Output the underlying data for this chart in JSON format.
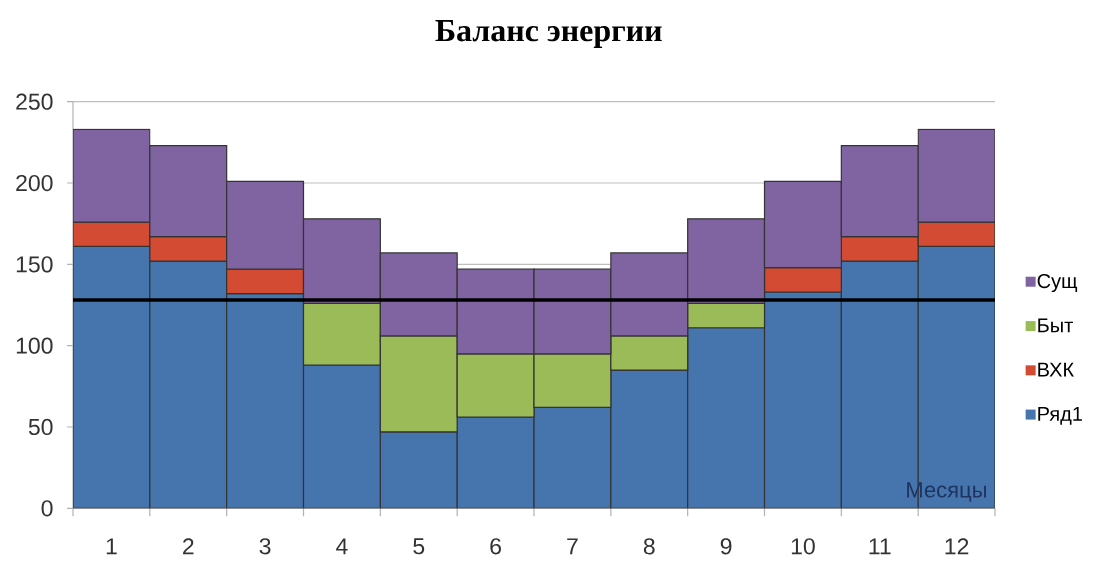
{
  "chart_data": {
    "type": "bar",
    "title": "Баланс энергии",
    "xlabel": "Месяцы",
    "categories": [
      "1",
      "2",
      "3",
      "4",
      "5",
      "6",
      "7",
      "8",
      "9",
      "10",
      "11",
      "12"
    ],
    "stacked": true,
    "series": [
      {
        "name": "Ряд1",
        "color": "#4674ad",
        "values": [
          161,
          152,
          132,
          88,
          47,
          56,
          62,
          85,
          111,
          133,
          152,
          161
        ]
      },
      {
        "name": "ВХК",
        "color": "#d24b32",
        "values": [
          15,
          15,
          15,
          null,
          null,
          null,
          null,
          null,
          null,
          15,
          15,
          15
        ]
      },
      {
        "name": "Быт",
        "color": "#9bbb59",
        "values": [
          null,
          null,
          null,
          38,
          59,
          39,
          33,
          21,
          15,
          null,
          null,
          null
        ]
      },
      {
        "name": "Сущ",
        "color": "#8064a2",
        "values": [
          57,
          56,
          54,
          52,
          51,
          52,
          52,
          51,
          52,
          53,
          56,
          57
        ]
      }
    ],
    "ylim": [
      0,
      250
    ],
    "yticks": [
      0,
      50,
      100,
      150,
      200,
      250
    ],
    "grid": "y",
    "legend": "right",
    "ref_lines": [
      {
        "axis": "y",
        "value": 128,
        "color": "#000000"
      }
    ]
  }
}
